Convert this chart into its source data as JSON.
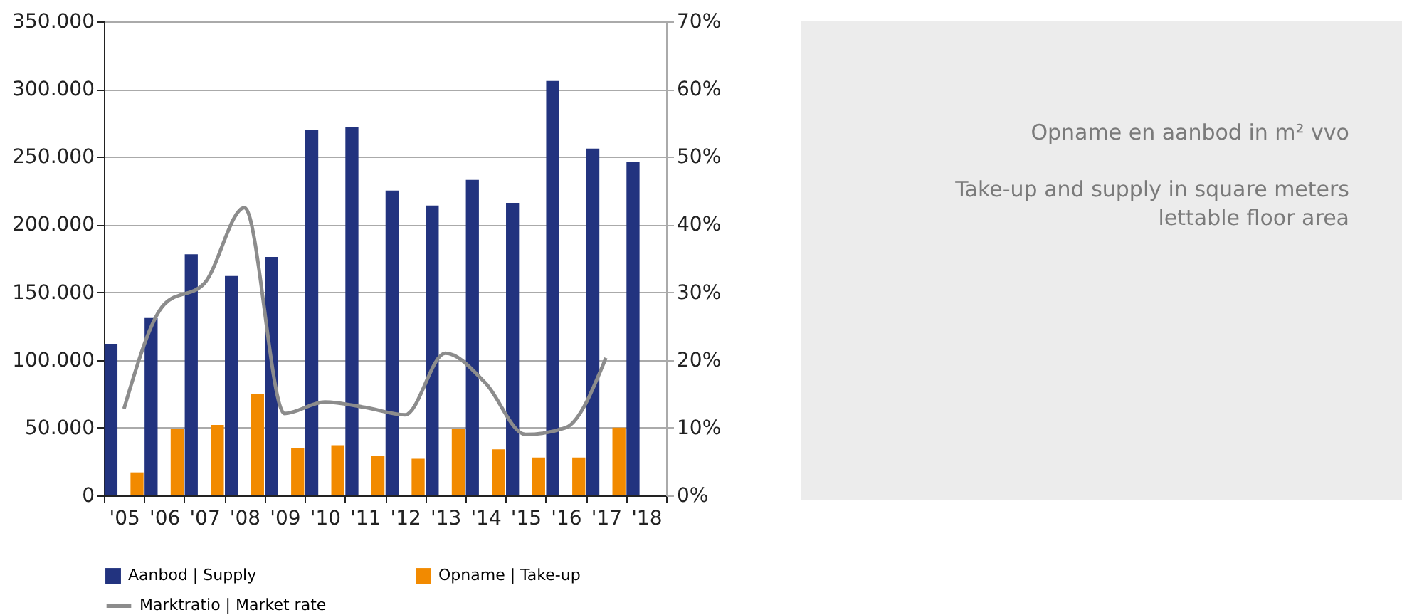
{
  "chart_data": {
    "type": "bar",
    "title": "Opname en aanbod in m² vvo",
    "subtitle": "Take-up and supply in square meters lettable floor area",
    "categories": [
      "'05",
      "'06",
      "'07",
      "'08",
      "'09",
      "'10",
      "'11",
      "'12",
      "'13",
      "'14",
      "'15",
      "'16",
      "'17",
      "'18"
    ],
    "series": [
      {
        "name": "Aanbod | Supply",
        "color": "#22337f",
        "values": [
          112000,
          131000,
          178000,
          162000,
          176000,
          270000,
          272000,
          225000,
          214000,
          233000,
          216000,
          306000,
          256000,
          246000
        ]
      },
      {
        "name": "Opname | Take-up",
        "color": "#f28a00",
        "values": [
          17000,
          49000,
          52000,
          75000,
          35000,
          37000,
          29000,
          27000,
          49000,
          34000,
          28000,
          28000,
          50000,
          null
        ]
      },
      {
        "name": "Marktratio | Market rate",
        "type": "line",
        "axis": "y2",
        "color": "#8c8c8c",
        "values": [
          12.8,
          28.2,
          31.3,
          42.5,
          12.1,
          13.8,
          13,
          11.9,
          21,
          16.6,
          9,
          10,
          20.3,
          null
        ]
      }
    ],
    "ylim": [
      0,
      350000
    ],
    "yticks": [
      0,
      {
        "value": 50000,
        "label": "50.000"
      },
      {
        "value": 100000,
        "label": "100.000"
      },
      {
        "value": 150000,
        "label": "150.000"
      },
      {
        "value": 200000,
        "label": "200.000"
      },
      {
        "value": 250000,
        "label": "250.000"
      },
      {
        "value": 300000,
        "label": "300.000"
      },
      {
        "value": 350000,
        "label": "350.000"
      }
    ],
    "y2lim": [
      0,
      70
    ],
    "y2ticks": [
      {
        "value": 0,
        "label": "0%"
      },
      {
        "value": 10,
        "label": "10%"
      },
      {
        "value": 20,
        "label": "20%"
      },
      {
        "value": 30,
        "label": "30%"
      },
      {
        "value": 40,
        "label": "40%"
      },
      {
        "value": 50,
        "label": "50%"
      },
      {
        "value": 60,
        "label": "60%"
      },
      {
        "value": 70,
        "label": "70%"
      }
    ],
    "grid": "y",
    "legend": "bottom left",
    "line_style": "solid",
    "marker": "none"
  }
}
